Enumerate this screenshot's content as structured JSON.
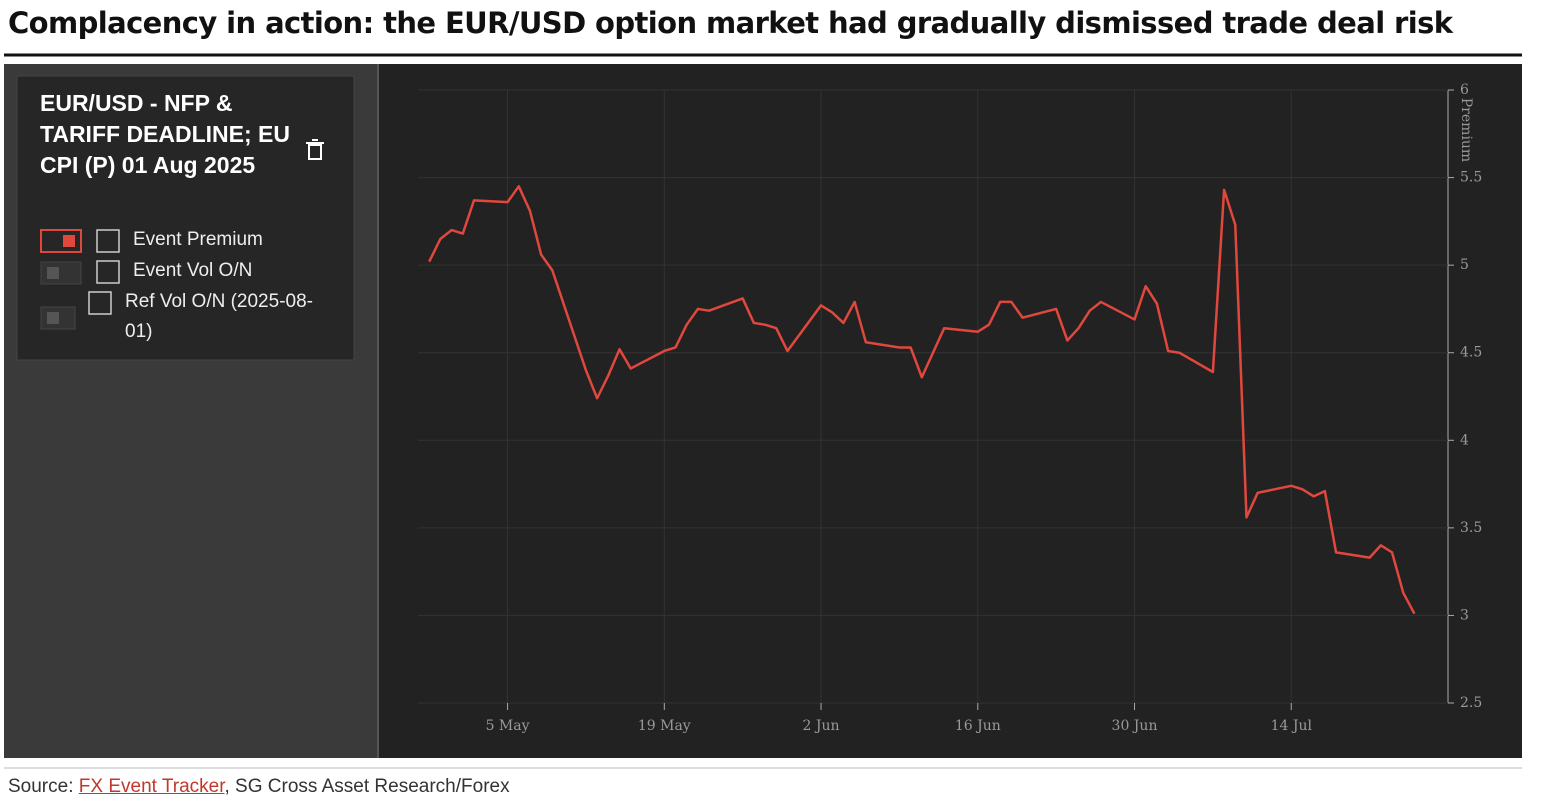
{
  "title": "Complacency in action: the EUR/USD option market had gradually dismissed trade deal risk",
  "panel": {
    "title": "EUR/USD - NFP & TARIFF DEADLINE; EU CPI (P) 01 Aug 2025",
    "inactive_legend": [
      "Event Vol O/N",
      "Ref Vol O/N (2025-08-01)"
    ]
  },
  "source": {
    "prefix": "Source:",
    "link": "FX Event Tracker",
    "suffix": ", SG Cross Asset Research/Forex"
  },
  "chart_data": {
    "type": "line",
    "y_label": "Premium",
    "x": [
      "28 Apr",
      "29 Apr",
      "30 Apr",
      "1 May",
      "2 May",
      "5 May",
      "6 May",
      "7 May",
      "8 May",
      "9 May",
      "12 May",
      "13 May",
      "14 May",
      "15 May",
      "16 May",
      "19 May",
      "20 May",
      "21 May",
      "22 May",
      "23 May",
      "26 May",
      "27 May",
      "28 May",
      "29 May",
      "30 May",
      "2 Jun",
      "3 Jun",
      "4 Jun",
      "5 Jun",
      "6 Jun",
      "9 Jun",
      "10 Jun",
      "11 Jun",
      "12 Jun",
      "13 Jun",
      "16 Jun",
      "17 Jun",
      "18 Jun",
      "19 Jun",
      "20 Jun",
      "23 Jun",
      "24 Jun",
      "25 Jun",
      "26 Jun",
      "27 Jun",
      "30 Jun",
      "1 Jul",
      "2 Jul",
      "3 Jul",
      "4 Jul",
      "7 Jul",
      "8 Jul",
      "9 Jul",
      "10 Jul",
      "11 Jul",
      "14 Jul",
      "15 Jul",
      "16 Jul",
      "17 Jul",
      "18 Jul",
      "21 Jul",
      "22 Jul",
      "23 Jul",
      "24 Jul",
      "25 Jul"
    ],
    "series": [
      {
        "name": "Event Premium",
        "color": "#e0483e",
        "values": [
          5.02,
          5.15,
          5.2,
          5.18,
          5.37,
          5.36,
          5.45,
          5.31,
          5.06,
          4.97,
          4.4,
          4.24,
          4.37,
          4.52,
          4.41,
          4.51,
          4.53,
          4.66,
          4.75,
          4.74,
          4.81,
          4.67,
          4.66,
          4.64,
          4.51,
          4.77,
          4.73,
          4.67,
          4.79,
          4.56,
          4.53,
          4.53,
          4.36,
          4.5,
          4.64,
          4.62,
          4.66,
          4.79,
          4.79,
          4.7,
          4.75,
          4.57,
          4.64,
          4.74,
          4.79,
          4.69,
          4.88,
          4.78,
          4.51,
          4.5,
          4.39,
          5.43,
          5.23,
          3.56,
          3.7,
          3.74,
          3.72,
          3.68,
          3.71,
          3.36,
          3.33,
          3.4,
          3.36,
          3.13,
          3.01
        ]
      }
    ],
    "xlim": [
      "27 Apr",
      "28 Jul"
    ],
    "xticks": [
      "5 May",
      "19 May",
      "2 Jun",
      "16 Jun",
      "30 Jun",
      "14 Jul"
    ],
    "ylim": [
      2.5,
      6
    ],
    "yticks": [
      2.5,
      3,
      3.5,
      4,
      4.5,
      5,
      5.5,
      6
    ],
    "grid": true
  }
}
